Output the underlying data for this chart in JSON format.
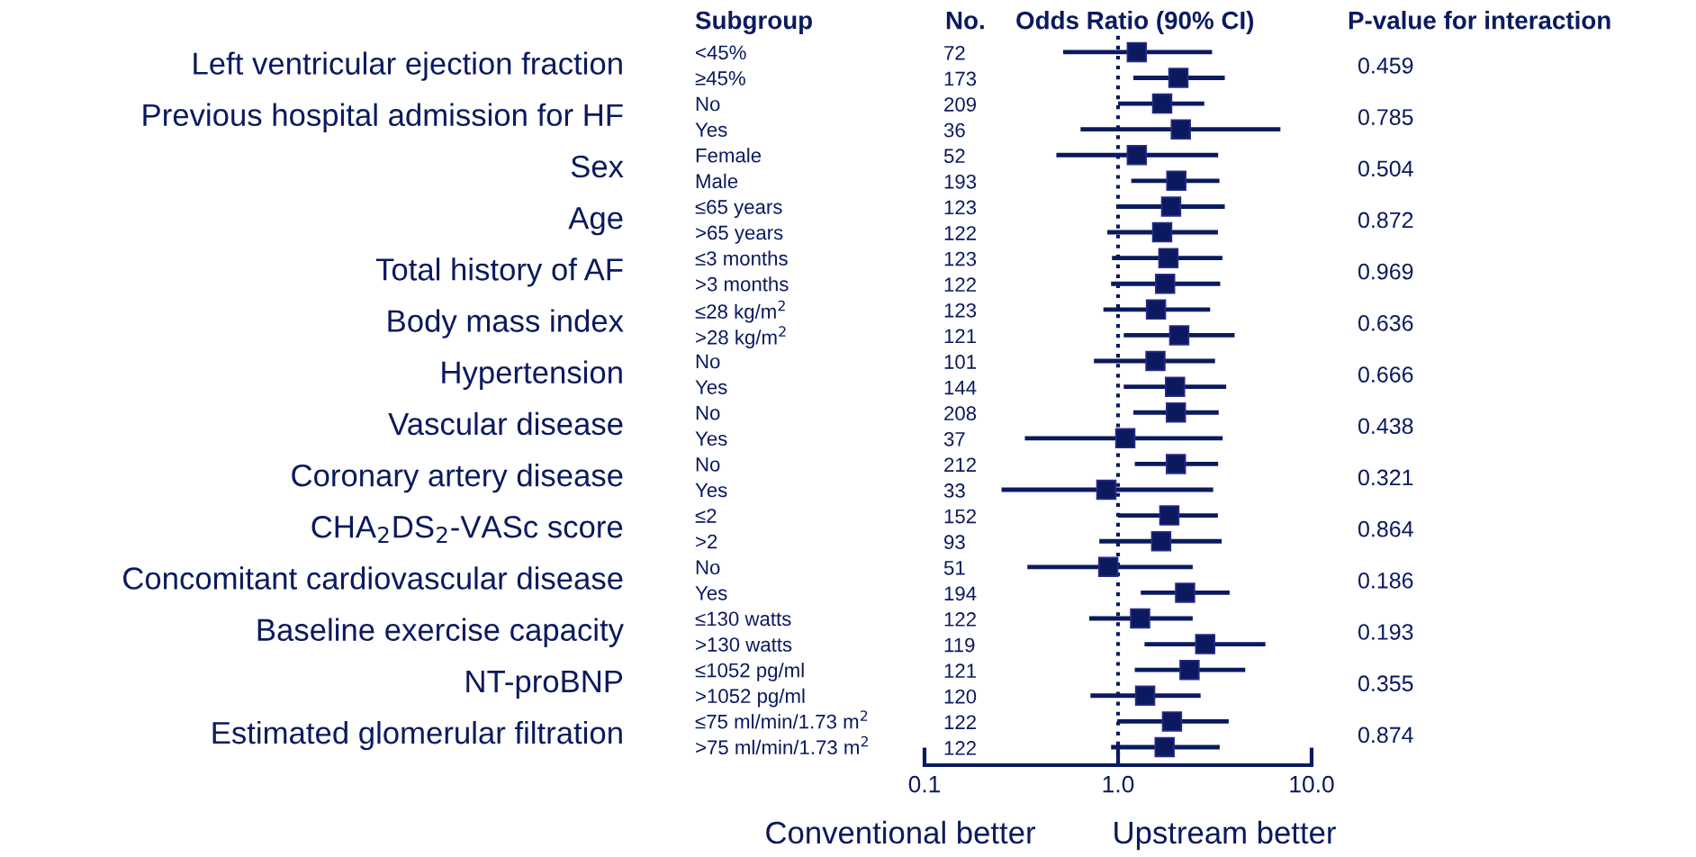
{
  "chart_data": {
    "type": "scatter",
    "orientation": "horizontal",
    "log": "x",
    "marker": "square",
    "grid": false,
    "legend": false,
    "categories": [
      "<45%",
      "≥45%",
      "No",
      "Yes",
      "Female",
      "Male",
      "≤65 years",
      ">65 years",
      "≤3 months",
      ">3 months",
      "≤28 kg/m$^{2}$",
      ">28 kg/m$^{2}$",
      "No",
      "Yes",
      "No",
      "Yes",
      "No",
      "Yes",
      "≤2",
      ">2",
      "No",
      "Yes",
      "≤130 watts",
      ">130 watts",
      "≤1052 pg/ml",
      ">1052 pg/ml",
      "≤75 ml/min/1.73 m$^{2}$",
      ">75 ml/min/1.73 m$^{2}$"
    ],
    "series": [
      {
        "color": "#0b1a5e",
        "values": [
          1.25,
          2.05,
          1.69,
          2.11,
          1.25,
          2.0,
          1.88,
          1.69,
          1.82,
          1.75,
          1.57,
          2.07,
          1.56,
          1.97,
          1.99,
          1.09,
          1.99,
          0.87,
          1.84,
          1.67,
          0.89,
          2.22,
          1.3,
          2.82,
          2.34,
          1.38,
          1.9,
          1.74
        ],
        "errors": [
          [
            0.52,
            3.06
          ],
          [
            1.2,
            3.56
          ],
          [
            1.0,
            2.79
          ],
          [
            0.64,
            6.9
          ],
          [
            0.48,
            3.29
          ],
          [
            1.17,
            3.34
          ],
          [
            0.98,
            3.56
          ],
          [
            0.88,
            3.28
          ],
          [
            0.93,
            3.46
          ],
          [
            0.92,
            3.37
          ],
          [
            0.84,
            2.99
          ],
          [
            1.07,
            4.0
          ],
          [
            0.75,
            3.17
          ],
          [
            1.07,
            3.62
          ],
          [
            1.2,
            3.31
          ],
          [
            0.33,
            3.47
          ],
          [
            1.22,
            3.29
          ],
          [
            0.25,
            3.1
          ],
          [
            1.0,
            3.28
          ],
          [
            0.8,
            3.43
          ],
          [
            0.34,
            2.43
          ],
          [
            1.31,
            3.77
          ],
          [
            0.71,
            2.43
          ],
          [
            1.37,
            5.77
          ],
          [
            1.22,
            4.54
          ],
          [
            0.72,
            2.67
          ],
          [
            0.99,
            3.73
          ],
          [
            0.92,
            3.35
          ]
        ]
      }
    ],
    "xlim": [
      0.1,
      10
    ],
    "xticks": [
      {
        "value": 0.1,
        "label": "0.1"
      },
      {
        "value": 1,
        "label": "1.0"
      },
      {
        "value": 10,
        "label": "10.0"
      }
    ],
    "ref_lines": [
      {
        "axis": "x",
        "value": 1,
        "line_style": "dotted",
        "color": "#0b1a5e"
      }
    ],
    "annotations": [
      "Subgroup",
      "No.",
      "Odds Ratio (90% CI)",
      "P-value for interaction",
      "Left ventricular ejection fraction",
      "Previous hospital admission for HF",
      "Sex",
      "Age",
      "Total history of AF",
      "Body mass index",
      "Hypertension",
      "Vascular disease",
      "Coronary artery disease",
      "CHA$_{2}$DS$_{2}$-VASc score",
      "Concomitant cardiovascular disease",
      "Baseline exercise capacity",
      "NT-proBNP",
      "Estimated glomerular filtration",
      "72",
      "173",
      "209",
      "36",
      "52",
      "193",
      "123",
      "122",
      "123",
      "122",
      "123",
      "121",
      "101",
      "144",
      "208",
      "37",
      "212",
      "33",
      "152",
      "93",
      "51",
      "194",
      "122",
      "119",
      "121",
      "120",
      "122",
      "122",
      "0.459",
      "0.785",
      "0.504",
      "0.872",
      "0.969",
      "0.636",
      "0.666",
      "0.438",
      "0.321",
      "0.864",
      "0.186",
      "0.193",
      "0.355",
      "0.874",
      "Conventional better",
      "Upstream better"
    ]
  }
}
